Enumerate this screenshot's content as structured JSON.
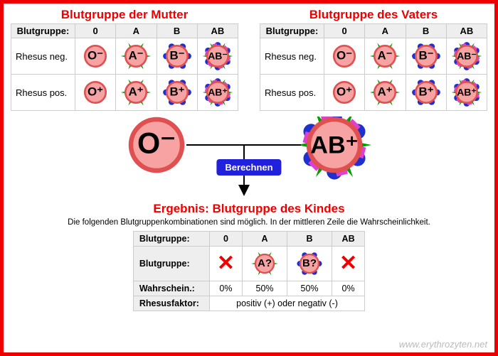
{
  "colors": {
    "border": "#ee0000",
    "cellBody": "#f8a3a3",
    "cellEdge": "#e05050",
    "antigenA": "#00a000",
    "antigenB": "#2030d0",
    "abExtra": "#e040d0",
    "text": "#000000",
    "btn": "#2020dd"
  },
  "columns": [
    "0",
    "A",
    "B",
    "AB"
  ],
  "rows": [
    "Rhesus neg.",
    "Rhesus pos."
  ],
  "colHeaderLabel": "Blutgruppe:",
  "mother": {
    "title": "Blutgruppe der Mutter"
  },
  "father": {
    "title": "Blutgruppe des Vaters"
  },
  "calcLabel": "Berechnen",
  "selectedMother": "O⁻",
  "selectedFather": "AB⁺",
  "result": {
    "title": "Ergebnis: Blutgruppe des Kindes",
    "subtitle": "Die folgenden Blutgruppenkombinationen sind möglich. In der mittleren Zeile die Wahrscheinlichkeit.",
    "row1Label": "Blutgruppe:",
    "row2Label": "Blutgruppe:",
    "row3Label": "Wahrschein.:",
    "row4Label": "Rhesusfaktor:",
    "cells": [
      {
        "type": "x"
      },
      {
        "type": "cell",
        "label": "A?",
        "style": "A"
      },
      {
        "type": "cell",
        "label": "B?",
        "style": "B"
      },
      {
        "type": "x"
      }
    ],
    "pct": [
      "0%",
      "50%",
      "50%",
      "0%"
    ],
    "rhesus": "positiv (+) oder negativ (-)"
  },
  "watermark": "www.erythrozyten.net"
}
